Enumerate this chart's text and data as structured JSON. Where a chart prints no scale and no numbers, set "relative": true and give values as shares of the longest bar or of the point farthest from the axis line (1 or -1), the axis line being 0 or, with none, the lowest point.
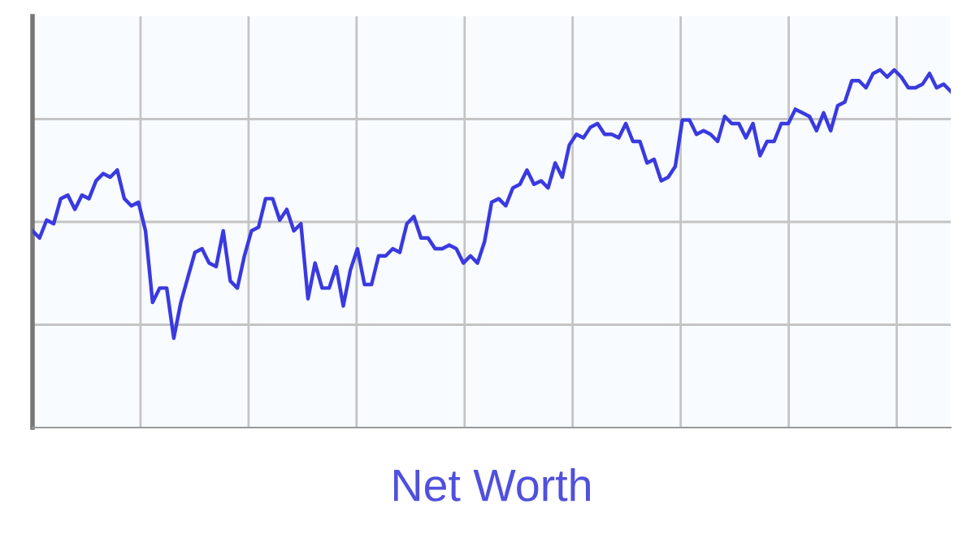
{
  "chart_data": {
    "type": "line",
    "relative": true,
    "xlabel": "Net Worth",
    "grid": true,
    "categories": [
      null,
      null,
      null,
      null,
      null,
      null,
      null,
      null,
      null,
      null,
      null,
      null,
      null,
      null,
      null,
      null,
      null,
      null,
      null,
      null,
      null,
      null,
      null,
      null,
      null,
      null,
      null,
      null,
      null,
      null,
      null,
      null,
      null,
      null,
      null,
      null,
      null,
      null,
      null,
      null,
      null,
      null,
      null,
      null,
      null,
      null,
      null,
      null,
      null,
      null,
      null,
      null,
      null,
      null,
      null,
      null,
      null,
      null,
      null,
      null,
      null,
      null,
      null,
      null,
      null,
      null,
      null,
      null,
      null,
      null,
      null,
      null,
      null,
      null,
      null,
      null,
      null,
      null,
      null,
      null,
      null,
      null,
      null,
      null,
      null,
      null,
      null,
      null,
      null,
      null,
      null,
      null,
      null,
      null,
      null,
      null,
      null,
      null,
      null,
      null,
      null,
      null,
      null,
      null,
      null,
      null,
      null,
      null,
      null,
      null,
      null,
      null,
      null,
      null,
      null,
      null,
      null,
      null,
      null,
      null,
      null,
      null,
      null,
      null,
      null,
      null,
      null,
      null,
      null,
      null,
      null
    ],
    "series": [
      {
        "color": "#3a3ae0",
        "values": [
          0.55,
          0.53,
          0.58,
          0.57,
          0.64,
          0.65,
          0.61,
          0.65,
          0.64,
          0.69,
          0.71,
          0.7,
          0.72,
          0.64,
          0.62,
          0.63,
          0.55,
          0.35,
          0.39,
          0.39,
          0.25,
          0.35,
          0.42,
          0.49,
          0.5,
          0.46,
          0.45,
          0.55,
          0.41,
          0.39,
          0.48,
          0.55,
          0.56,
          0.64,
          0.64,
          0.58,
          0.61,
          0.55,
          0.57,
          0.36,
          0.46,
          0.39,
          0.39,
          0.45,
          0.34,
          0.44,
          0.5,
          0.4,
          0.4,
          0.48,
          0.48,
          0.5,
          0.49,
          0.57,
          0.59,
          0.53,
          0.53,
          0.5,
          0.5,
          0.51,
          0.5,
          0.46,
          0.48,
          0.46,
          0.52,
          0.63,
          0.64,
          0.62,
          0.67,
          0.68,
          0.72,
          0.68,
          0.69,
          0.67,
          0.74,
          0.7,
          0.79,
          0.82,
          0.81,
          0.84,
          0.85,
          0.82,
          0.82,
          0.81,
          0.85,
          0.8,
          0.8,
          0.74,
          0.75,
          0.69,
          0.7,
          0.73,
          0.86,
          0.86,
          0.82,
          0.83,
          0.82,
          0.8,
          0.87,
          0.85,
          0.85,
          0.81,
          0.85,
          0.76,
          0.8,
          0.8,
          0.85,
          0.85,
          0.89,
          0.88,
          0.87,
          0.83,
          0.88,
          0.83,
          0.9,
          0.91,
          0.97,
          0.97,
          0.95,
          0.99,
          1.0,
          0.98,
          1.0,
          0.98,
          0.95,
          0.95,
          0.96,
          0.99,
          0.95,
          0.96,
          0.94
        ]
      }
    ]
  }
}
